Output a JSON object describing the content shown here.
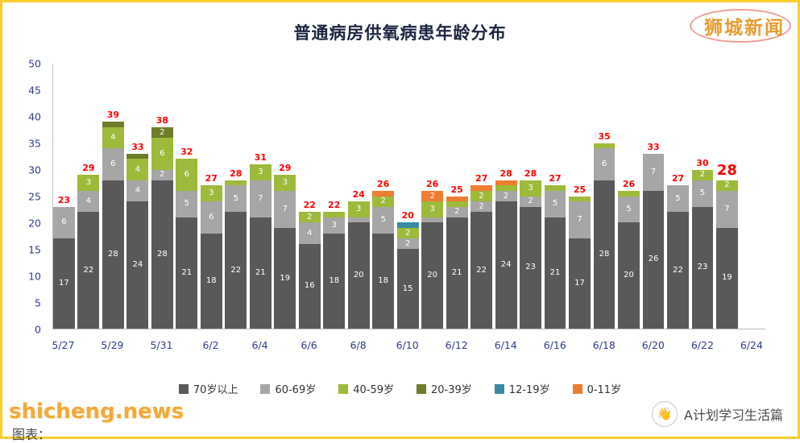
{
  "page": {
    "watermark_top_right": "狮城新闻",
    "watermark_bottom_left": "shicheng.news",
    "credit_bottom_left": "图表：",
    "watermark_bottom_right": "A计划学习生活篇",
    "hand_emoji": "👋"
  },
  "chart_data": {
    "type": "bar",
    "stacked": true,
    "title": "普通病房供氧病患年龄分布",
    "ymax": 50,
    "y_ticks": [
      0,
      5,
      10,
      15,
      20,
      25,
      30,
      35,
      40,
      45,
      50
    ],
    "x_ticks": [
      "5/27",
      "5/29",
      "5/31",
      "6/2",
      "6/4",
      "6/6",
      "6/8",
      "6/10",
      "6/12",
      "6/14",
      "6/16",
      "6/18",
      "6/20",
      "6/22",
      "6/24"
    ],
    "grid": false,
    "legend_position": "bottom",
    "total_label_color": "#ff0000",
    "series": [
      {
        "name": "70岁以上",
        "color": "#595959"
      },
      {
        "name": "60-69岁",
        "color": "#a6a6a6"
      },
      {
        "name": "40-59岁",
        "color": "#9dba3b"
      },
      {
        "name": "20-39岁",
        "color": "#6e7d29"
      },
      {
        "name": "12-19岁",
        "color": "#3a8ba0"
      },
      {
        "name": "0-11岁",
        "color": "#ed7d31"
      }
    ],
    "bars": [
      {
        "date": "5/27",
        "values": [
          17,
          6,
          0,
          0,
          0,
          0
        ],
        "total": 23
      },
      {
        "date": "5/28",
        "values": [
          22,
          4,
          3,
          0,
          0,
          0
        ],
        "total": 29
      },
      {
        "date": "5/29",
        "values": [
          28,
          6,
          4,
          1,
          0,
          0
        ],
        "total": 39
      },
      {
        "date": "5/30",
        "values": [
          24,
          4,
          4,
          1,
          0,
          0
        ],
        "total": 33
      },
      {
        "date": "5/31",
        "values": [
          28,
          2,
          6,
          2,
          0,
          0
        ],
        "total": 38
      },
      {
        "date": "6/1",
        "values": [
          21,
          5,
          6,
          0,
          0,
          0
        ],
        "total": 32
      },
      {
        "date": "6/2",
        "values": [
          18,
          6,
          3,
          0,
          0,
          0
        ],
        "total": 27
      },
      {
        "date": "6/3",
        "values": [
          22,
          5,
          1,
          0,
          0,
          0
        ],
        "total": 28
      },
      {
        "date": "6/4",
        "values": [
          21,
          7,
          3,
          0,
          0,
          0
        ],
        "total": 31
      },
      {
        "date": "6/5",
        "values": [
          19,
          7,
          3,
          0,
          0,
          0
        ],
        "total": 29
      },
      {
        "date": "6/6",
        "values": [
          16,
          4,
          2,
          0,
          0,
          0
        ],
        "total": 22
      },
      {
        "date": "6/7",
        "values": [
          18,
          3,
          1,
          0,
          0,
          0
        ],
        "total": 22
      },
      {
        "date": "6/8",
        "values": [
          20,
          1,
          3,
          0,
          0,
          0
        ],
        "total": 24
      },
      {
        "date": "6/9",
        "values": [
          18,
          5,
          2,
          0,
          0,
          1
        ],
        "total": 26
      },
      {
        "date": "6/10",
        "values": [
          15,
          2,
          2,
          0,
          1,
          0
        ],
        "total": 20
      },
      {
        "date": "6/11",
        "values": [
          20,
          1,
          3,
          0,
          0,
          2
        ],
        "total": 26
      },
      {
        "date": "6/12",
        "values": [
          21,
          2,
          1,
          0,
          0,
          1
        ],
        "total": 25
      },
      {
        "date": "6/13",
        "values": [
          22,
          2,
          2,
          0,
          0,
          1
        ],
        "total": 27
      },
      {
        "date": "6/14",
        "values": [
          24,
          2,
          1,
          0,
          0,
          1
        ],
        "total": 28
      },
      {
        "date": "6/15",
        "values": [
          23,
          2,
          3,
          0,
          0,
          0
        ],
        "total": 28
      },
      {
        "date": "6/16",
        "values": [
          21,
          5,
          1,
          0,
          0,
          0
        ],
        "total": 27
      },
      {
        "date": "6/17",
        "values": [
          17,
          7,
          1,
          0,
          0,
          0
        ],
        "total": 25
      },
      {
        "date": "6/18",
        "values": [
          28,
          6,
          1,
          0,
          0,
          0
        ],
        "total": 35
      },
      {
        "date": "6/19",
        "values": [
          20,
          5,
          1,
          0,
          0,
          0
        ],
        "total": 26
      },
      {
        "date": "6/20",
        "values": [
          26,
          7,
          0,
          0,
          0,
          0
        ],
        "total": 33
      },
      {
        "date": "6/21",
        "values": [
          22,
          5,
          0,
          0,
          0,
          0
        ],
        "total": 27
      },
      {
        "date": "6/22",
        "values": [
          23,
          5,
          2,
          0,
          0,
          0
        ],
        "total": 30
      },
      {
        "date": "6/23",
        "values": [
          19,
          7,
          2,
          0,
          0,
          0
        ],
        "total": 28
      }
    ]
  }
}
